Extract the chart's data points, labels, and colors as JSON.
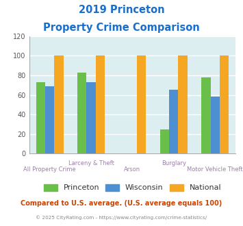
{
  "title_line1": "2019 Princeton",
  "title_line2": "Property Crime Comparison",
  "categories": [
    "All Property Crime",
    "Larceny & Theft",
    "Arson",
    "Burglary",
    "Motor Vehicle Theft"
  ],
  "series": {
    "Princeton": [
      73,
      83,
      0,
      25,
      78
    ],
    "Wisconsin": [
      69,
      73,
      0,
      65,
      58
    ],
    "National": [
      100,
      100,
      100,
      100,
      100
    ]
  },
  "colors": {
    "Princeton": "#6abf4b",
    "Wisconsin": "#4d8fd1",
    "National": "#f5a623"
  },
  "ylim": [
    0,
    120
  ],
  "yticks": [
    0,
    20,
    40,
    60,
    80,
    100,
    120
  ],
  "bar_width": 0.22,
  "grid_color": "#ffffff",
  "plot_area_bg": "#ddeef0",
  "title_color": "#1a6fcc",
  "xlabel_color": "#9b7faa",
  "legend_label_color": "#333333",
  "footer_text": "Compared to U.S. average. (U.S. average equals 100)",
  "footer_color": "#cc4400",
  "credit_text": "© 2025 CityRating.com - https://www.cityrating.com/crime-statistics/",
  "credit_color": "#888888"
}
